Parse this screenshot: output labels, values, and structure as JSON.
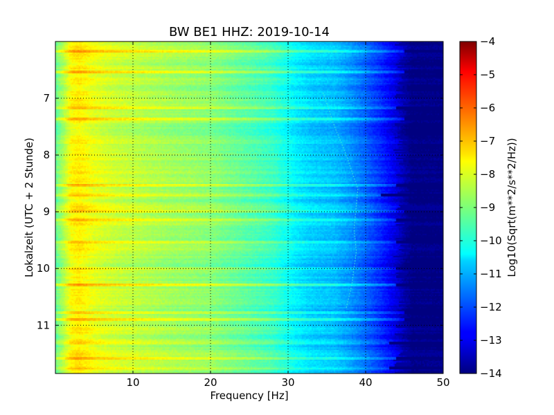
{
  "chart_data": {
    "type": "heatmap",
    "title": "BW BE1 HHZ: 2019-10-14",
    "xlabel": "Frequency [Hz]",
    "ylabel": "Lokalzeit (UTC + 2 Stunde)",
    "xlim": [
      0,
      50
    ],
    "ylim": [
      6.0,
      11.85
    ],
    "y_inverted": true,
    "x_ticks": [
      10,
      20,
      30,
      40,
      50
    ],
    "y_ticks": [
      7,
      8,
      9,
      10,
      11
    ],
    "grid": true,
    "colorbar": {
      "label": "Log10(Sqrt(m**2/s**2/Hz))",
      "range": [
        -14,
        -4
      ],
      "ticks": [
        -4,
        -5,
        -6,
        -7,
        -8,
        -9,
        -10,
        -11,
        -12,
        -13,
        -14
      ],
      "colormap": "jet"
    },
    "spectral_profile": {
      "frequency_hz": [
        0,
        1,
        2,
        3,
        5,
        8,
        10,
        15,
        20,
        25,
        28,
        31,
        33,
        36,
        38,
        40,
        42,
        44,
        45,
        46,
        50
      ],
      "log10_amplitude": [
        -9.3,
        -8.6,
        -7.8,
        -7.6,
        -8.0,
        -8.3,
        -8.4,
        -8.7,
        -8.9,
        -9.4,
        -9.7,
        -10.4,
        -10.7,
        -10.9,
        -11.3,
        -11.8,
        -12.4,
        -13.1,
        -13.6,
        -14.0,
        -14.0
      ]
    },
    "bright_bands": [
      {
        "time": 6.15,
        "delta": 0.9,
        "max_freq_hz": 45
      },
      {
        "time": 6.5,
        "delta": 0.8,
        "max_freq_hz": 45
      },
      {
        "time": 7.15,
        "delta": 0.7,
        "max_freq_hz": 44
      },
      {
        "time": 7.33,
        "delta": 0.9,
        "max_freq_hz": 45
      },
      {
        "time": 8.5,
        "delta": 0.7,
        "max_freq_hz": 44
      },
      {
        "time": 8.68,
        "delta": 0.5,
        "max_freq_hz": 42
      },
      {
        "time": 8.98,
        "delta": 0.6,
        "max_freq_hz": 45
      },
      {
        "time": 9.12,
        "delta": 0.6,
        "max_freq_hz": 44
      },
      {
        "time": 9.5,
        "delta": 0.8,
        "max_freq_hz": 44
      },
      {
        "time": 9.97,
        "delta": 0.6,
        "max_freq_hz": 44
      },
      {
        "time": 10.27,
        "delta": 0.8,
        "max_freq_hz": 44
      },
      {
        "time": 10.75,
        "delta": 0.7,
        "max_freq_hz": 45
      },
      {
        "time": 10.88,
        "delta": 0.8,
        "max_freq_hz": 45
      },
      {
        "time": 11.3,
        "delta": 0.5,
        "max_freq_hz": 43
      },
      {
        "time": 11.55,
        "delta": 0.6,
        "max_freq_hz": 44
      },
      {
        "time": 11.72,
        "delta": 0.5,
        "max_freq_hz": 43
      }
    ],
    "drifting_line": {
      "points": [
        [
          34.5,
          6.9
        ],
        [
          36,
          7.5
        ],
        [
          37.5,
          8.0
        ],
        [
          39,
          8.6
        ],
        [
          38.5,
          9.3
        ],
        [
          38.8,
          9.7
        ],
        [
          38.2,
          10.3
        ],
        [
          37.5,
          10.7
        ]
      ]
    }
  }
}
